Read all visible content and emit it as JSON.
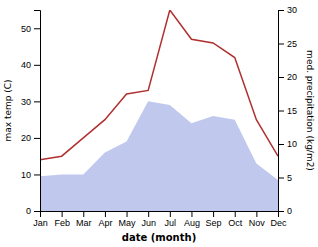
{
  "chart_data": {
    "type": "line",
    "categories": [
      "Jan",
      "Feb",
      "Mar",
      "Apr",
      "May",
      "Jun",
      "Jul",
      "Aug",
      "Sep",
      "Oct",
      "Nov",
      "Dec"
    ],
    "series": [
      {
        "type": "area",
        "color": "#c0c8ee",
        "values": [
          9.5,
          10,
          10,
          16,
          19,
          30,
          29,
          24,
          26,
          25,
          13,
          8.5
        ]
      },
      {
        "type": "line",
        "color": "#b03030",
        "values": [
          14,
          15,
          20,
          25,
          32,
          33,
          55,
          47,
          46,
          42,
          25,
          15
        ]
      }
    ],
    "x_label": "date (month)",
    "y_label": "max temp (C)",
    "y2_label": "med. precipitation (kg/m2)",
    "ylim": [
      0,
      55
    ],
    "yticks": [
      0,
      10,
      20,
      30,
      40,
      50
    ],
    "y2lim": [
      0,
      30
    ],
    "y2ticks": [
      0,
      5,
      10,
      15,
      20,
      25,
      30
    ],
    "grid": false
  }
}
